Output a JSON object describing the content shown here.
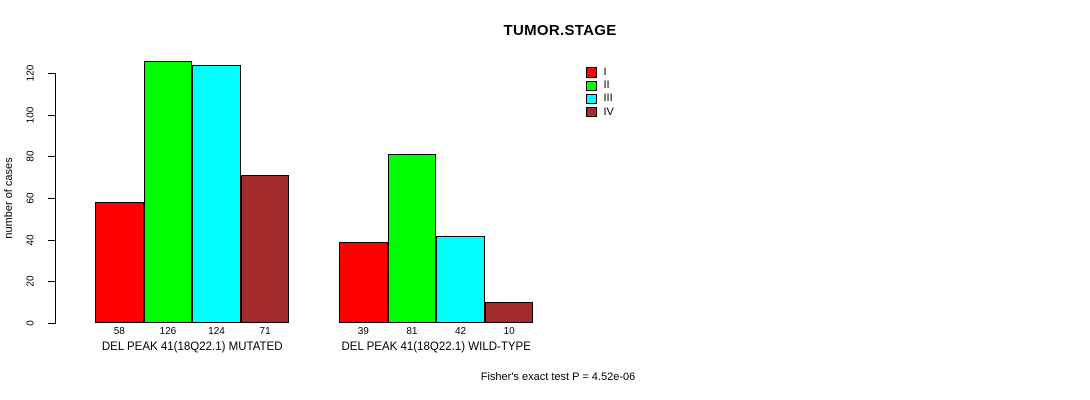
{
  "title": "TUMOR.STAGE",
  "chart_data": {
    "type": "bar",
    "title": "TUMOR.STAGE",
    "ylabel": "number of cases",
    "xlabel": "",
    "ylim": [
      0,
      120
    ],
    "yticks": [
      0,
      20,
      40,
      60,
      80,
      100,
      120
    ],
    "grid": false,
    "legend_position": "top-right",
    "categories": [
      "DEL PEAK 41(18Q22.1) MUTATED",
      "DEL PEAK 41(18Q22.1) WILD-TYPE"
    ],
    "series": [
      {
        "name": "I",
        "color": "#ff0000",
        "values": [
          58,
          39
        ]
      },
      {
        "name": "II",
        "color": "#00ff00",
        "values": [
          126,
          81
        ]
      },
      {
        "name": "III",
        "color": "#00ffff",
        "values": [
          124,
          42
        ]
      },
      {
        "name": "IV",
        "color": "#a52a2a",
        "values": [
          71,
          10
        ]
      }
    ],
    "bar_value_labels": [
      [
        "58",
        "126",
        "124",
        "71"
      ],
      [
        "39",
        "81",
        "42",
        "10"
      ]
    ],
    "annotation": "Fisher's exact test P = 4.52e-06"
  }
}
